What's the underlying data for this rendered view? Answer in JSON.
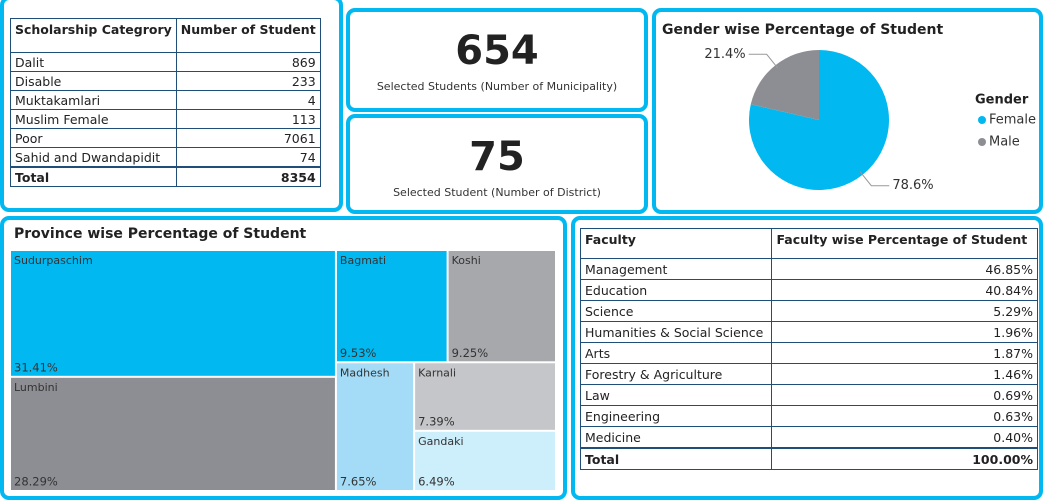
{
  "scholarship_table": {
    "header": [
      "Scholarship Categrory",
      "Number of Student"
    ],
    "rows": [
      [
        "Dalit",
        869
      ],
      [
        "Disable",
        233
      ],
      [
        "Muktakamlari",
        4
      ],
      [
        "Muslim Female",
        113
      ],
      [
        "Poor",
        7061
      ],
      [
        "Sahid and Dwandapidit",
        74
      ]
    ],
    "total": [
      "Total",
      8354
    ]
  },
  "cards": [
    {
      "value": 654,
      "label": "Selected Students (Number of Municipality)"
    },
    {
      "value": 75,
      "label": "Selected Student (Number of District)"
    }
  ],
  "chart_data": [
    {
      "type": "pie",
      "title": "Gender wise Percentage of Student",
      "legend_title": "Gender",
      "legend": "right",
      "categories": [
        "Female",
        "Male"
      ],
      "values": [
        78.6,
        21.4
      ],
      "value_labels": [
        "78.6%",
        "21.4%"
      ],
      "colors": [
        "#01b8f0",
        "#8d8e93"
      ]
    },
    {
      "type": "treemap",
      "title": "Province wise Percentage of Student",
      "categories": [
        "Sudurpaschim",
        "Lumbini",
        "Bagmati",
        "Koshi",
        "Madhesh",
        "Karnali",
        "Gandaki"
      ],
      "values": [
        31.41,
        28.29,
        9.53,
        9.25,
        7.65,
        7.39,
        6.49
      ],
      "value_labels": [
        "31.41%",
        "28.29%",
        "9.53%",
        "9.25%",
        "7.65%",
        "7.39%",
        "6.49%"
      ],
      "colors": [
        "#01b8f0",
        "#8d8e93",
        "#01b8f0",
        "#a7a8ac",
        "#a4dcf7",
        "#c5c6c9",
        "#cdeefb"
      ]
    }
  ],
  "faculty_table": {
    "header": [
      "Faculty",
      "Faculty wise Percentage of Student"
    ],
    "rows": [
      [
        "Management",
        "46.85%"
      ],
      [
        "Education",
        "40.84%"
      ],
      [
        "Science",
        "5.29%"
      ],
      [
        "Humanities & Social Science",
        "1.96%"
      ],
      [
        "Arts",
        "1.87%"
      ],
      [
        "Forestry & Agriculture",
        "1.46%"
      ],
      [
        "Law",
        "0.69%"
      ],
      [
        "Engineering",
        "0.63%"
      ],
      [
        "Medicine",
        "0.40%"
      ]
    ],
    "total": [
      "Total",
      "100.00%"
    ]
  }
}
